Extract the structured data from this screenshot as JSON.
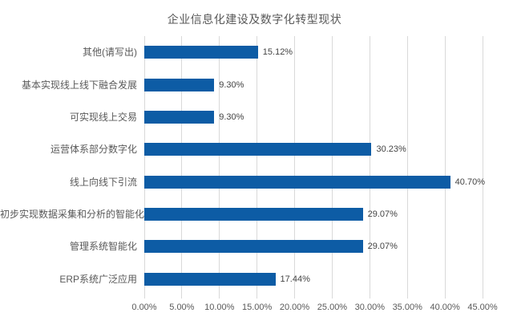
{
  "chart": {
    "title": "企业信息化建设及数字化转型现状",
    "bar_color": "#0d5ca5",
    "gridline_color": "#d9d9d9",
    "text_color": "#595959"
  },
  "chart_data": {
    "type": "bar",
    "orientation": "horizontal",
    "title": "企业信息化建设及数字化转型现状",
    "categories": [
      "其他(请写出)",
      "基本实现线上线下融合发展",
      "可实现线上交易",
      "运营体系部分数字化",
      "线上向线下引流",
      "初步实现数据采集和分析的智能化",
      "管理系统智能化",
      "ERP系统广泛应用"
    ],
    "values": [
      15.12,
      9.3,
      9.3,
      30.23,
      40.7,
      29.07,
      29.07,
      17.44
    ],
    "data_labels": [
      "15.12%",
      "9.30%",
      "9.30%",
      "30.23%",
      "40.70%",
      "29.07%",
      "29.07%",
      "17.44%"
    ],
    "x_tick_labels": [
      "0.00%",
      "5.00%",
      "10.00%",
      "15.00%",
      "20.00%",
      "25.00%",
      "30.00%",
      "35.00%",
      "40.00%",
      "45.00%"
    ],
    "x_tick_values": [
      0,
      5,
      10,
      15,
      20,
      25,
      30,
      35,
      40,
      45
    ],
    "xlim": [
      0,
      45
    ],
    "xlabel": "",
    "ylabel": "",
    "grid": true,
    "legend": false
  }
}
